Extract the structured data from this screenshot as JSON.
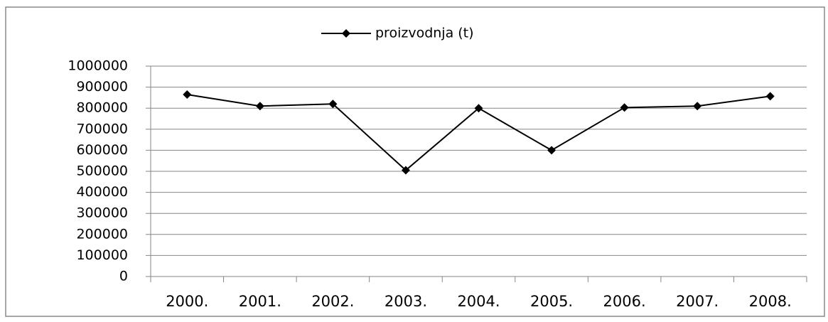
{
  "chart_data": {
    "type": "line",
    "categories": [
      "2000.",
      "2001.",
      "2002.",
      "2003.",
      "2004.",
      "2005.",
      "2006.",
      "2007.",
      "2008."
    ],
    "series": [
      {
        "name": "proizvodnja (t)",
        "color": "#000000",
        "values": [
          865000,
          810000,
          820000,
          505000,
          800000,
          600000,
          803000,
          810000,
          857000
        ]
      }
    ],
    "ylim": [
      0,
      1000000
    ],
    "yticks": [
      0,
      100000,
      200000,
      300000,
      400000,
      500000,
      600000,
      700000,
      800000,
      900000,
      1000000
    ],
    "grid": true,
    "legend": "top"
  }
}
